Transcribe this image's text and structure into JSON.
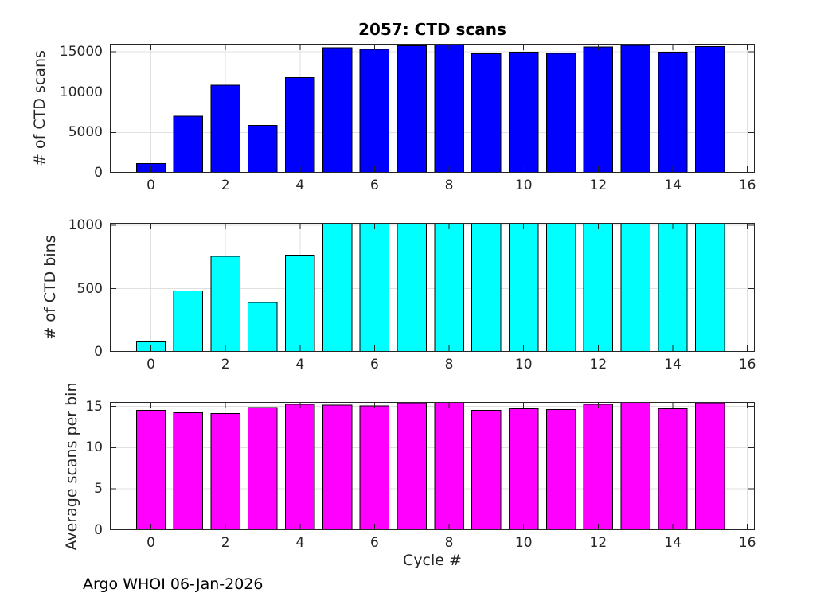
{
  "annotation": "Argo WHOI 06-Jan-2026",
  "colors": {
    "scans_bar": "#0000ff",
    "bins_bar": "#00ffff",
    "avg_bar": "#ff00ff",
    "bar_edge": "#000000",
    "axis": "#262626",
    "grid": "#e0e0e0",
    "title_text": "#000000",
    "label_text": "#262626"
  },
  "chart_data": [
    {
      "type": "bar",
      "title": "2057: CTD scans",
      "ylabel": "# of CTD scans",
      "xlabel": "",
      "categories": [
        0,
        1,
        2,
        3,
        4,
        5,
        6,
        7,
        8,
        9,
        10,
        11,
        12,
        13,
        14,
        15
      ],
      "values": [
        1180,
        7030,
        10880,
        5910,
        11860,
        15520,
        15330,
        15780,
        15980,
        14800,
        14970,
        14870,
        15620,
        15820,
        15000,
        15690
      ],
      "bar_color": "#0000ff",
      "edge_color": "#000000",
      "bar_width": 0.8,
      "ylim": [
        0,
        15980
      ],
      "yticks": [
        0,
        5000,
        10000,
        15000
      ],
      "xlim": [
        -1.1,
        16.2
      ],
      "xticks": [
        0,
        2,
        4,
        6,
        8,
        10,
        12,
        14,
        16
      ],
      "grid": true,
      "legend": "none"
    },
    {
      "type": "bar",
      "title": "",
      "ylabel": "# of CTD bins",
      "xlabel": "",
      "categories": [
        0,
        1,
        2,
        3,
        4,
        5,
        6,
        7,
        8,
        9,
        10,
        11,
        12,
        13,
        14,
        15
      ],
      "values": [
        81,
        485,
        758,
        394,
        769,
        1020,
        1020,
        1020,
        1020,
        1020,
        1020,
        1020,
        1020,
        1020,
        1020,
        1020
      ],
      "bar_color": "#00ffff",
      "edge_color": "#000000",
      "bar_width": 0.8,
      "ylim": [
        0,
        1020
      ],
      "yticks": [
        0,
        500,
        1000
      ],
      "xlim": [
        -1.1,
        16.2
      ],
      "xticks": [
        0,
        2,
        4,
        6,
        8,
        10,
        12,
        14,
        16
      ],
      "grid": true,
      "legend": "none"
    },
    {
      "type": "bar",
      "title": "",
      "ylabel": "Average scans per bin",
      "xlabel": "Cycle #",
      "categories": [
        0,
        1,
        2,
        3,
        4,
        5,
        6,
        7,
        8,
        9,
        10,
        11,
        12,
        13,
        14,
        15
      ],
      "values": [
        14.6,
        14.3,
        14.2,
        14.9,
        15.3,
        15.2,
        15.1,
        15.5,
        15.55,
        14.6,
        14.8,
        14.7,
        15.3,
        15.55,
        14.8,
        15.5
      ],
      "bar_color": "#ff00ff",
      "edge_color": "#000000",
      "bar_width": 0.8,
      "ylim": [
        0,
        15.55
      ],
      "yticks": [
        0,
        5,
        10,
        15
      ],
      "xlim": [
        -1.1,
        16.2
      ],
      "xticks": [
        0,
        2,
        4,
        6,
        8,
        10,
        12,
        14,
        16
      ],
      "grid": true,
      "legend": "none"
    }
  ]
}
